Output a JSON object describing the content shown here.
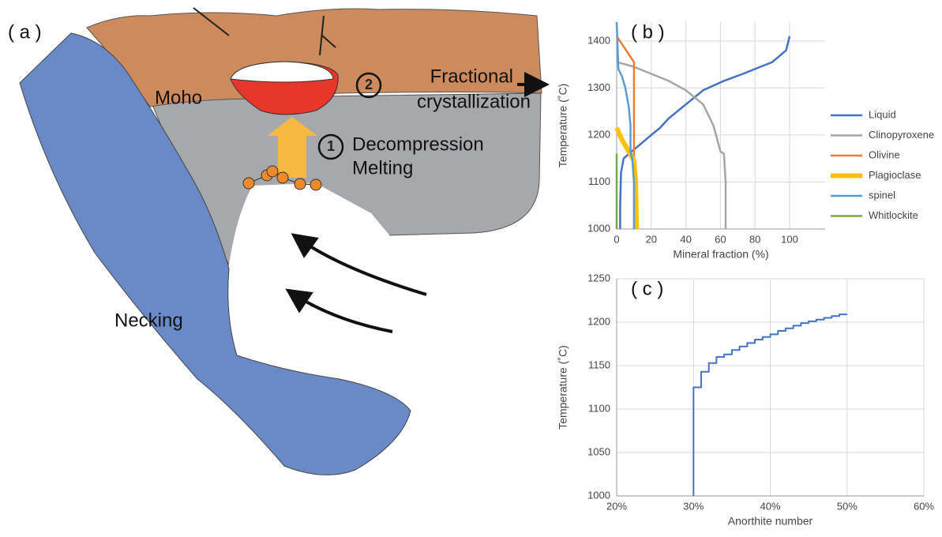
{
  "diagram": {
    "panel_label": "( a )",
    "moho": "Moho",
    "step_1": "1",
    "step_2": "2",
    "decompression": [
      "Decompression",
      "Melting"
    ],
    "fractional": [
      "Fractional",
      "crystallization"
    ],
    "necking": "Necking"
  },
  "chart_data": [
    {
      "type": "line",
      "title": "( b )",
      "x_label": "Mineral fraction (%)",
      "y_label": "Temperature (˚C)",
      "xlim": [
        0,
        100
      ],
      "xticks": [
        0,
        20,
        40,
        60,
        80,
        100
      ],
      "ylim": [
        1000,
        1440
      ],
      "yticks": [
        1000,
        1100,
        1200,
        1300,
        1400
      ],
      "grid": true,
      "legend": "right",
      "series": [
        {
          "name": "Liquid",
          "color": "#4472c4",
          "width": 2.5,
          "x": [
            100,
            98,
            90,
            73,
            62,
            50,
            40,
            30,
            25,
            20,
            12,
            8,
            4,
            2.5,
            2,
            2
          ],
          "values": [
            1410,
            1380,
            1355,
            1330,
            1315,
            1295,
            1265,
            1235,
            1215,
            1200,
            1175,
            1163,
            1150,
            1120,
            1050,
            1000
          ]
        },
        {
          "name": "Clinopyroxene",
          "color": "#a5a5a5",
          "width": 2.5,
          "x": [
            0,
            10,
            20,
            30,
            40,
            50,
            56,
            60,
            62,
            63,
            63
          ],
          "values": [
            1355,
            1345,
            1330,
            1315,
            1295,
            1265,
            1220,
            1165,
            1160,
            1100,
            1000
          ]
        },
        {
          "name": "Olivine",
          "color": "#ed7d31",
          "width": 2.5,
          "x": [
            0,
            10,
            10,
            10
          ],
          "values": [
            1410,
            1355,
            1160,
            1140
          ]
        },
        {
          "name": "Plagioclase",
          "color": "#ffc000",
          "width": 6,
          "x": [
            0,
            3,
            7,
            10,
            11,
            11.5
          ],
          "values": [
            1215,
            1190,
            1165,
            1145,
            1100,
            1000
          ]
        },
        {
          "name": "spinel",
          "color": "#5b9bd5",
          "width": 2.5,
          "x": [
            0,
            1,
            3,
            5,
            7,
            8,
            8,
            9,
            10,
            10
          ],
          "values": [
            1440,
            1340,
            1325,
            1300,
            1260,
            1220,
            1165,
            1150,
            1100,
            1000
          ]
        },
        {
          "name": "Whitlockite",
          "color": "#70ad47",
          "width": 2.5,
          "x": [
            0,
            0
          ],
          "values": [
            1160,
            1000
          ]
        }
      ]
    },
    {
      "type": "line",
      "title": "( c )",
      "x_label": "Anorthite number",
      "y_label": "Temperature (˚C)",
      "xlim": [
        20,
        60
      ],
      "xticks": [
        {
          "value": 20,
          "label": "20%"
        },
        {
          "value": 30,
          "label": "30%"
        },
        {
          "value": 40,
          "label": "40%"
        },
        {
          "value": 50,
          "label": "50%"
        },
        {
          "value": 60,
          "label": "60%"
        }
      ],
      "ylim": [
        1000,
        1250
      ],
      "yticks": [
        1000,
        1050,
        1100,
        1150,
        1200,
        1250
      ],
      "grid": true,
      "series": [
        {
          "color": "#4472c4",
          "width": 2,
          "x": [
            30,
            30,
            31,
            31,
            32,
            32,
            33,
            33,
            34,
            34,
            35,
            35,
            36,
            36,
            37,
            37,
            38,
            38,
            39,
            39,
            40,
            40,
            41,
            41,
            42,
            42,
            43,
            43,
            44,
            44,
            45,
            45,
            46,
            46,
            47,
            47,
            48,
            48,
            49,
            49,
            50
          ],
          "values": [
            1000,
            1125,
            1125,
            1143,
            1143,
            1153,
            1153,
            1160,
            1160,
            1163,
            1163,
            1168,
            1168,
            1172,
            1172,
            1176,
            1176,
            1180,
            1180,
            1183,
            1183,
            1186,
            1186,
            1190,
            1190,
            1193,
            1193,
            1196,
            1196,
            1199,
            1199,
            1201,
            1201,
            1203,
            1203,
            1205,
            1205,
            1207,
            1207,
            1209,
            1209
          ]
        }
      ]
    }
  ]
}
